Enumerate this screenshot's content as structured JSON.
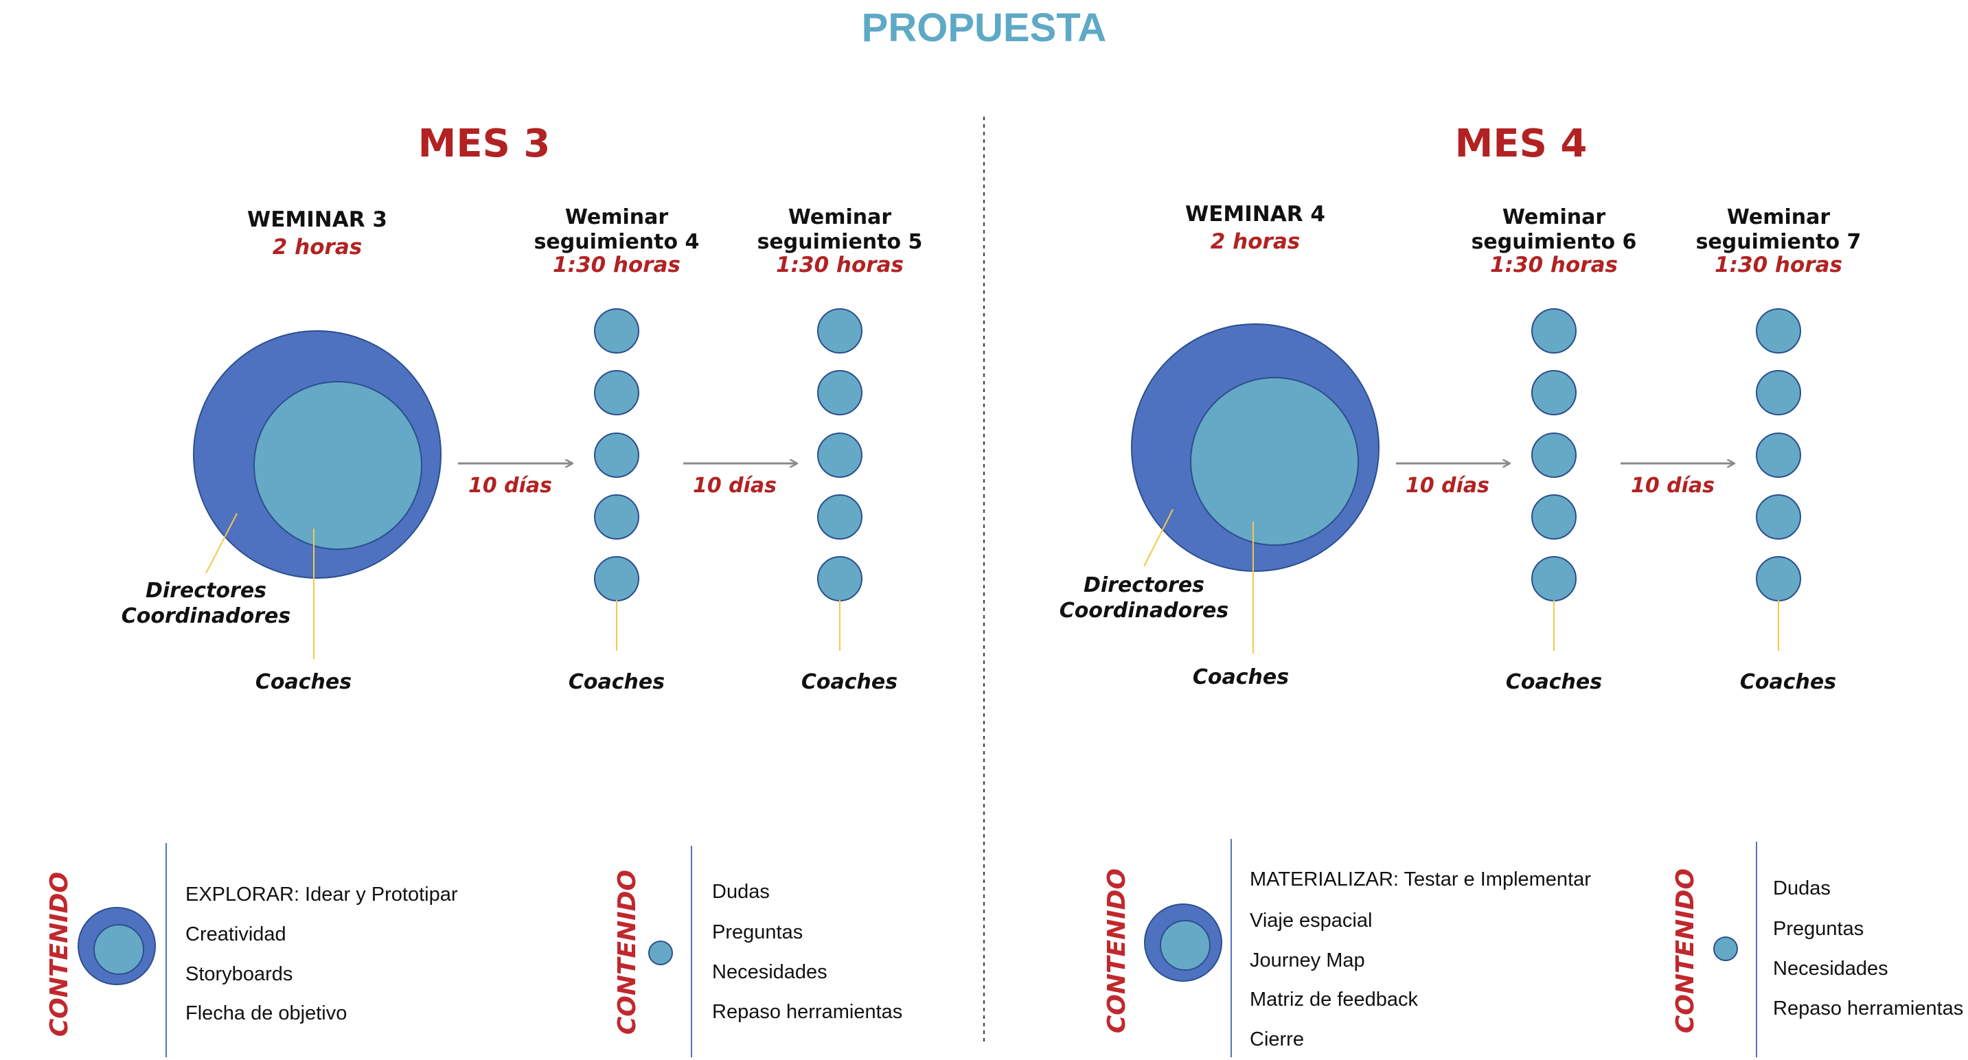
{
  "title": "PROPUESTA",
  "colors": {
    "title": "#5ea9c6",
    "accent_red": "#b22222",
    "outer_circle": "#4f72c0",
    "inner_circle": "#66a9c6",
    "pointer_line": "#f2c94c",
    "divider": "#333333",
    "arrow": "#8a8a8a"
  },
  "months": [
    {
      "label": "MES 3",
      "main": {
        "title": "WEMINAR 3",
        "duration": "2 horas",
        "outer_label": [
          "Directores",
          "Coordinadores"
        ],
        "inner_label": "Coaches"
      },
      "followups": [
        {
          "title": [
            "Weminar",
            "seguimiento 4"
          ],
          "duration": "1:30 horas",
          "label": "Coaches"
        },
        {
          "title": [
            "Weminar",
            "seguimiento 5"
          ],
          "duration": "1:30 horas",
          "label": "Coaches"
        }
      ],
      "intervals": [
        "10 días",
        "10 días"
      ],
      "content": [
        {
          "heading": "CONTENIDO",
          "items": [
            "EXPLORAR: Idear y Prototipar",
            "Creatividad",
            "Storyboards",
            "Flecha de objetivo"
          ]
        },
        {
          "heading": "CONTENIDO",
          "items": [
            "Dudas",
            "Preguntas",
            "Necesidades",
            "Repaso herramientas"
          ]
        }
      ]
    },
    {
      "label": "MES 4",
      "main": {
        "title": "WEMINAR 4",
        "duration": "2 horas",
        "outer_label": [
          "Directores",
          "Coordinadores"
        ],
        "inner_label": "Coaches"
      },
      "followups": [
        {
          "title": [
            "Weminar",
            "seguimiento 6"
          ],
          "duration": "1:30 horas",
          "label": "Coaches"
        },
        {
          "title": [
            "Weminar",
            "seguimiento 7"
          ],
          "duration": "1:30 horas",
          "label": "Coaches"
        }
      ],
      "intervals": [
        "10 días",
        "10 días"
      ],
      "content": [
        {
          "heading": "CONTENIDO",
          "items": [
            "MATERIALIZAR: Testar e Implementar",
            "Viaje espacial",
            "Journey Map",
            "Matriz de feedback",
            "Cierre"
          ]
        },
        {
          "heading": "CONTENIDO",
          "items": [
            "Dudas",
            "Preguntas",
            "Necesidades",
            "Repaso herramientas"
          ]
        }
      ]
    }
  ]
}
